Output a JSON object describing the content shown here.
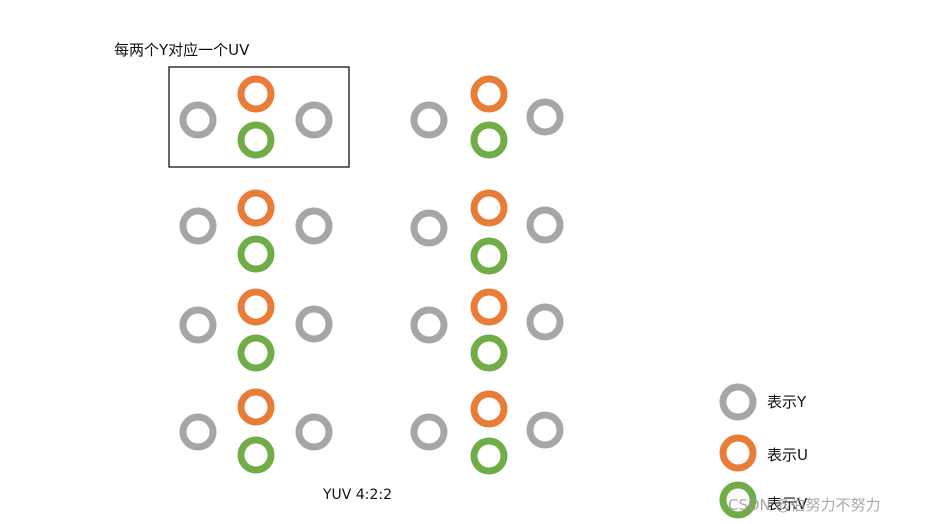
{
  "diagram": {
    "top_label": "每两个Y对应一个UV",
    "caption": "YUV 4:2:2"
  },
  "legend": {
    "y_label": "表示Y",
    "u_label": "表示U",
    "v_label": "表示V"
  },
  "colors": {
    "y": "#a6a6a6",
    "u": "#e97c36",
    "v": "#70ad47",
    "box": "#000000"
  },
  "watermark": "CSDN @伯努力不努力"
}
